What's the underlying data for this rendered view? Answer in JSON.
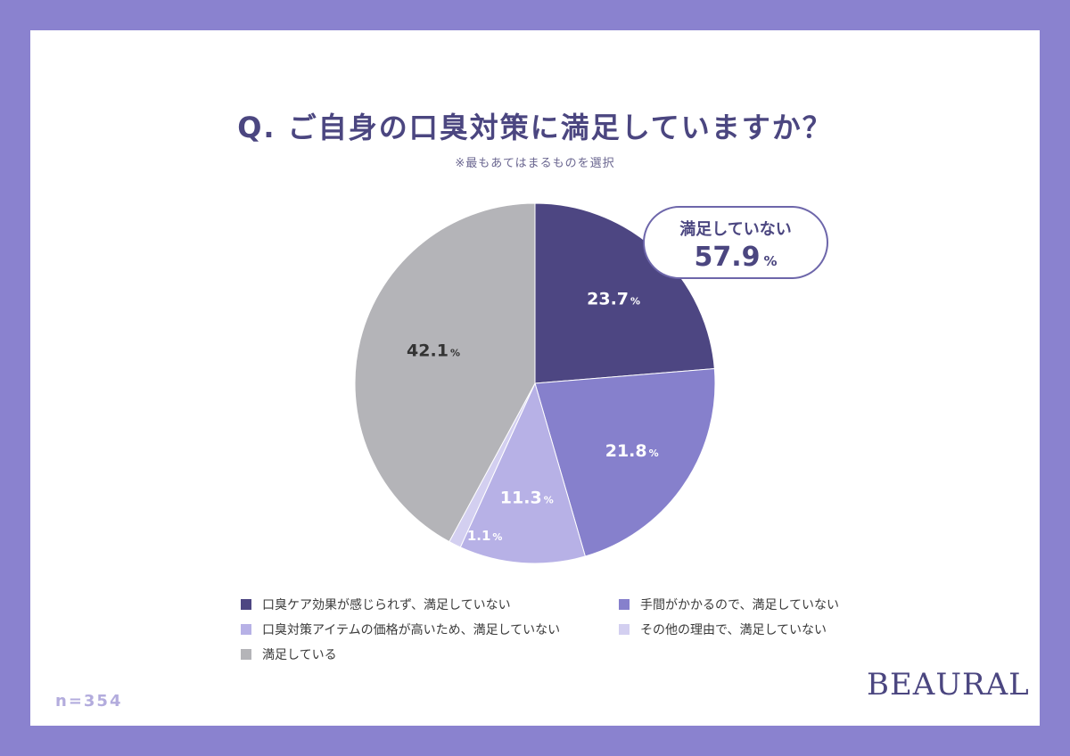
{
  "chart_data": {
    "type": "pie",
    "title": "Q. ご自身の口臭対策に満足していますか？",
    "subtitle": "※最もあてはまるものを選択",
    "unit": "%",
    "slices": [
      {
        "name": "口臭ケア効果が感じられず、満足していない",
        "value": 23.7,
        "label": "23.7",
        "color": "#4d4682"
      },
      {
        "name": "手間がかかるので、満足していない",
        "value": 21.8,
        "label": "21.8",
        "color": "#8680cc"
      },
      {
        "name": "口臭対策アイテムの価格が高いため、満足していない",
        "value": 11.3,
        "label": "11.3",
        "color": "#b7b1e6"
      },
      {
        "name": "その他の理由で、満足していない",
        "value": 1.1,
        "label": "1.1",
        "color": "#d3cff0"
      },
      {
        "name": "満足している",
        "value": 42.1,
        "label": "42.1",
        "color": "#b4b4b8"
      }
    ],
    "callout": {
      "label": "満足していない",
      "value": "57.9",
      "unit": "%"
    },
    "legend_placement": "bottom",
    "sample_size": "n=354"
  },
  "brand": {
    "logo_text": "BEAURAL"
  }
}
